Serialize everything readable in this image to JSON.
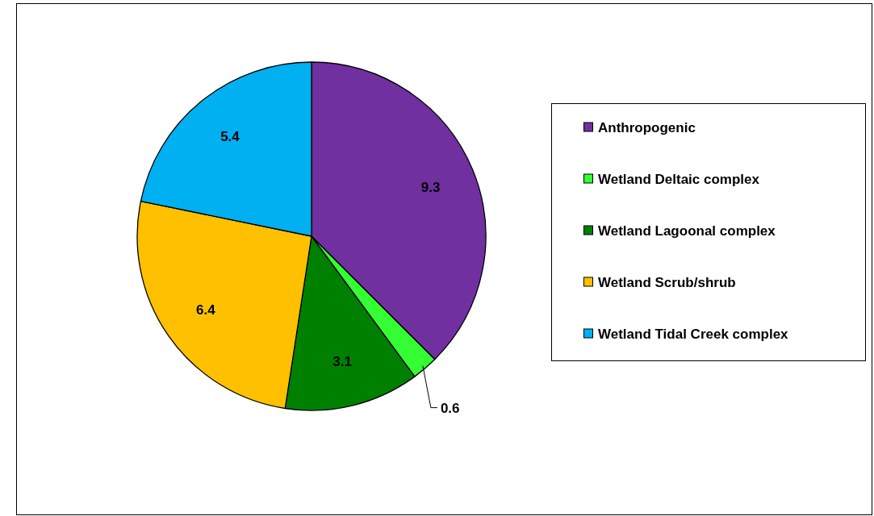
{
  "chart_data": {
    "type": "pie",
    "categories": [
      "Anthropogenic",
      "Wetland Deltaic complex",
      "Wetland Lagoonal complex",
      "Wetland Scrub/shrub",
      "Wetland Tidal Creek complex"
    ],
    "values": [
      9.3,
      0.6,
      3.1,
      6.4,
      5.4
    ],
    "colors": [
      "#7030a0",
      "#33ff33",
      "#008000",
      "#ffc000",
      "#00b0f0"
    ],
    "data_labels": true,
    "legend": "right"
  }
}
